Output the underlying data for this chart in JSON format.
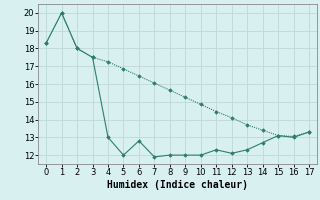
{
  "x": [
    0,
    1,
    2,
    3,
    4,
    5,
    6,
    7,
    8,
    9,
    10,
    11,
    12,
    13,
    14,
    15,
    16,
    17
  ],
  "line1_y": [
    18.3,
    20.0,
    18.0,
    17.5,
    17.25,
    16.85,
    16.45,
    16.05,
    15.65,
    15.25,
    14.85,
    14.45,
    14.1,
    13.7,
    13.4,
    13.1,
    13.05,
    13.3
  ],
  "line2_y": [
    18.3,
    20.0,
    18.0,
    17.5,
    13.0,
    12.0,
    12.8,
    11.9,
    12.0,
    12.0,
    12.0,
    12.3,
    12.1,
    12.3,
    12.7,
    13.1,
    13.0,
    13.3
  ],
  "line_color": "#2e7d6e",
  "bg_color": "#d8f0f0",
  "grid_color": "#c0d8d8",
  "xlabel": "Humidex (Indice chaleur)",
  "ylim": [
    11.5,
    20.5
  ],
  "xlim": [
    -0.5,
    17.5
  ],
  "yticks": [
    12,
    13,
    14,
    15,
    16,
    17,
    18,
    19,
    20
  ],
  "xticks": [
    0,
    1,
    2,
    3,
    4,
    5,
    6,
    7,
    8,
    9,
    10,
    11,
    12,
    13,
    14,
    15,
    16,
    17
  ],
  "font_size": 6,
  "xlabel_fontsize": 7
}
